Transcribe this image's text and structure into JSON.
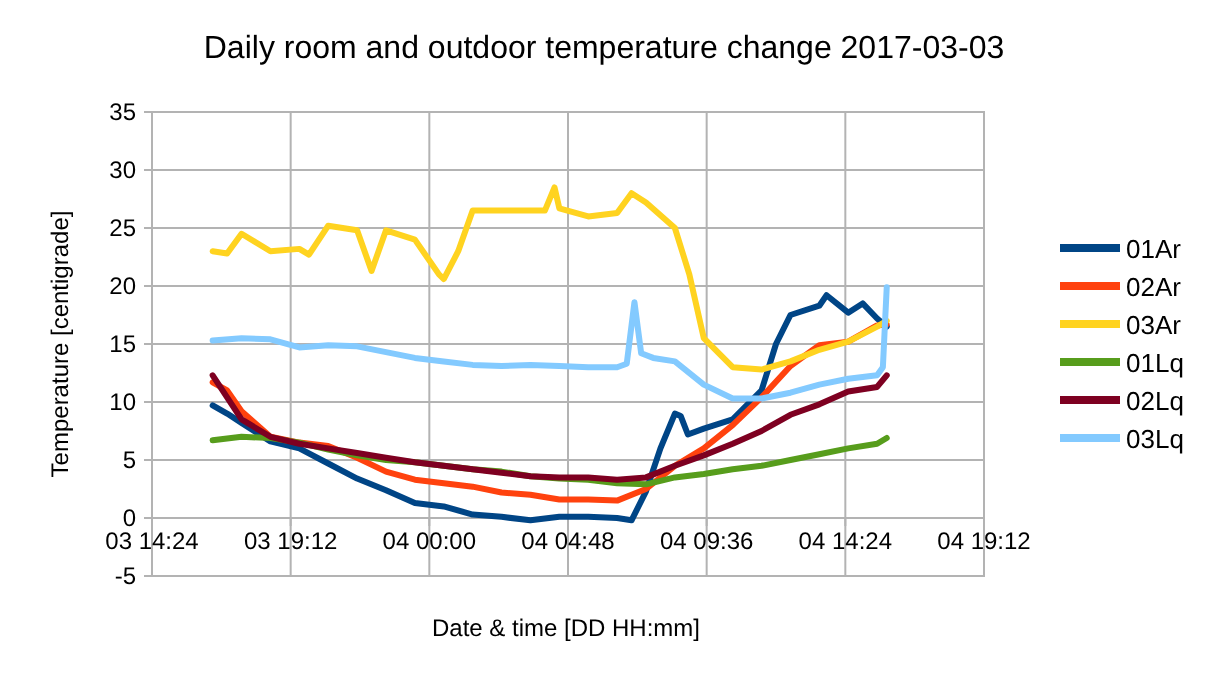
{
  "chart_data": {
    "type": "line",
    "title": "Daily room and outdoor temperature change 2017-03-03",
    "xlabel": "Date & time [DD HH:mm]",
    "ylabel": "Temperature [centigrade]",
    "xlim": [
      "2017-03-03T14:24",
      "2017-03-04T19:12"
    ],
    "xticks": [
      {
        "value": "2017-03-03T14:24",
        "label": "03 14:24"
      },
      {
        "value": "2017-03-03T19:12",
        "label": "03 19:12"
      },
      {
        "value": "2017-03-04T00:00",
        "label": "04 00:00"
      },
      {
        "value": "2017-03-04T04:48",
        "label": "04 04:48"
      },
      {
        "value": "2017-03-04T09:36",
        "label": "04 09:36"
      },
      {
        "value": "2017-03-04T14:24",
        "label": "04 14:24"
      },
      {
        "value": "2017-03-04T19:12",
        "label": "04 19:12"
      }
    ],
    "ylim": [
      -5,
      35
    ],
    "yticks": [
      -5,
      0,
      5,
      10,
      15,
      20,
      25,
      30,
      35
    ],
    "grid": true,
    "legend": "right",
    "marker": "none",
    "line_style": "solid",
    "series": [
      {
        "name": "01Ar",
        "color": "#004586",
        "x": [
          "2017-03-03T16:30",
          "2017-03-03T17:00",
          "2017-03-03T17:30",
          "2017-03-03T18:30",
          "2017-03-03T19:30",
          "2017-03-03T20:30",
          "2017-03-03T21:30",
          "2017-03-03T22:30",
          "2017-03-03T23:30",
          "2017-03-04T00:30",
          "2017-03-04T01:30",
          "2017-03-04T02:30",
          "2017-03-04T03:30",
          "2017-03-04T04:30",
          "2017-03-04T05:30",
          "2017-03-04T06:30",
          "2017-03-04T07:00",
          "2017-03-04T07:30",
          "2017-03-04T08:00",
          "2017-03-04T08:30",
          "2017-03-04T08:42",
          "2017-03-04T08:57",
          "2017-03-04T09:30",
          "2017-03-04T10:30",
          "2017-03-04T11:30",
          "2017-03-04T12:00",
          "2017-03-04T12:30",
          "2017-03-04T13:30",
          "2017-03-04T13:45",
          "2017-03-04T14:30",
          "2017-03-04T15:00",
          "2017-03-04T15:30",
          "2017-03-04T15:50"
        ],
        "values": [
          9.7,
          9,
          8.2,
          6.6,
          6,
          4.7,
          3.4,
          2.4,
          1.3,
          1,
          0.3,
          0.1,
          -0.2,
          0.1,
          0.1,
          0,
          -0.2,
          2.3,
          6,
          9,
          8.8,
          7.2,
          7.7,
          8.5,
          11,
          15,
          17.5,
          18.3,
          19.2,
          17.7,
          18.5,
          17.2,
          16.5
        ]
      },
      {
        "name": "02Ar",
        "color": "#ff420e",
        "x": [
          "2017-03-03T16:30",
          "2017-03-03T17:00",
          "2017-03-03T17:30",
          "2017-03-03T18:30",
          "2017-03-03T19:30",
          "2017-03-03T20:30",
          "2017-03-03T21:30",
          "2017-03-03T22:30",
          "2017-03-03T23:30",
          "2017-03-04T00:30",
          "2017-03-04T01:30",
          "2017-03-04T02:30",
          "2017-03-04T03:30",
          "2017-03-04T04:30",
          "2017-03-04T05:30",
          "2017-03-04T06:30",
          "2017-03-04T07:30",
          "2017-03-04T08:30",
          "2017-03-04T09:30",
          "2017-03-04T10:30",
          "2017-03-04T11:30",
          "2017-03-04T12:30",
          "2017-03-04T13:30",
          "2017-03-04T14:30",
          "2017-03-04T15:30",
          "2017-03-04T15:50"
        ],
        "values": [
          11.7,
          11,
          9.2,
          7,
          6.5,
          6.2,
          5.2,
          4,
          3.3,
          3,
          2.7,
          2.2,
          2,
          1.6,
          1.6,
          1.5,
          2.5,
          4.5,
          6,
          8,
          10.4,
          13.1,
          14.9,
          15.2,
          16.6,
          16.7
        ]
      },
      {
        "name": "03Ar",
        "color": "#ffd320",
        "x": [
          "2017-03-03T16:30",
          "2017-03-03T17:00",
          "2017-03-03T17:30",
          "2017-03-03T18:30",
          "2017-03-03T19:30",
          "2017-03-03T19:50",
          "2017-03-03T20:30",
          "2017-03-03T21:30",
          "2017-03-03T22:00",
          "2017-03-03T22:30",
          "2017-03-03T23:30",
          "2017-03-04T00:20",
          "2017-03-04T00:30",
          "2017-03-04T01:00",
          "2017-03-04T01:30",
          "2017-03-04T02:30",
          "2017-03-04T03:30",
          "2017-03-04T04:00",
          "2017-03-04T04:20",
          "2017-03-04T04:30",
          "2017-03-04T05:30",
          "2017-03-04T06:30",
          "2017-03-04T07:00",
          "2017-03-04T07:30",
          "2017-03-04T08:30",
          "2017-03-04T09:00",
          "2017-03-04T09:30",
          "2017-03-04T10:30",
          "2017-03-04T11:30",
          "2017-03-04T12:30",
          "2017-03-04T13:30",
          "2017-03-04T14:30",
          "2017-03-04T15:30",
          "2017-03-04T15:50"
        ],
        "values": [
          23,
          22.8,
          24.5,
          23,
          23.2,
          22.7,
          25.2,
          24.8,
          21.3,
          24.8,
          24,
          21,
          20.6,
          23,
          26.5,
          26.5,
          26.5,
          26.5,
          28.5,
          26.7,
          26,
          26.3,
          28,
          27.2,
          25,
          21,
          15.5,
          13,
          12.8,
          13.5,
          14.5,
          15.2,
          16.5,
          17
        ]
      },
      {
        "name": "01Lq",
        "color": "#579d1c",
        "x": [
          "2017-03-03T16:30",
          "2017-03-03T17:30",
          "2017-03-03T18:30",
          "2017-03-03T19:30",
          "2017-03-03T20:30",
          "2017-03-03T21:30",
          "2017-03-03T22:30",
          "2017-03-03T23:30",
          "2017-03-04T00:30",
          "2017-03-04T01:30",
          "2017-03-04T02:30",
          "2017-03-04T03:30",
          "2017-03-04T04:30",
          "2017-03-04T05:30",
          "2017-03-04T06:30",
          "2017-03-04T07:30",
          "2017-03-04T08:30",
          "2017-03-04T09:30",
          "2017-03-04T10:30",
          "2017-03-04T11:30",
          "2017-03-04T12:30",
          "2017-03-04T13:30",
          "2017-03-04T14:30",
          "2017-03-04T15:30",
          "2017-03-04T15:50"
        ],
        "values": [
          6.7,
          7,
          6.9,
          6.5,
          5.9,
          5.4,
          5,
          4.8,
          4.5,
          4.2,
          4,
          3.6,
          3.4,
          3.3,
          3,
          2.9,
          3.5,
          3.8,
          4.2,
          4.5,
          5,
          5.5,
          6,
          6.4,
          6.9
        ]
      },
      {
        "name": "02Lq",
        "color": "#7e0021",
        "x": [
          "2017-03-03T16:30",
          "2017-03-03T17:30",
          "2017-03-03T18:30",
          "2017-03-03T19:30",
          "2017-03-03T20:30",
          "2017-03-03T21:30",
          "2017-03-03T22:30",
          "2017-03-03T23:30",
          "2017-03-04T00:30",
          "2017-03-04T01:30",
          "2017-03-04T02:30",
          "2017-03-04T03:30",
          "2017-03-04T04:30",
          "2017-03-04T05:30",
          "2017-03-04T06:30",
          "2017-03-04T07:30",
          "2017-03-04T08:30",
          "2017-03-04T09:30",
          "2017-03-04T10:30",
          "2017-03-04T11:30",
          "2017-03-04T12:30",
          "2017-03-04T13:30",
          "2017-03-04T14:30",
          "2017-03-04T15:30",
          "2017-03-04T15:50"
        ],
        "values": [
          12.3,
          8.5,
          7,
          6.4,
          6,
          5.6,
          5.2,
          4.8,
          4.5,
          4.2,
          3.9,
          3.6,
          3.5,
          3.5,
          3.3,
          3.5,
          4.5,
          5.4,
          6.4,
          7.5,
          8.9,
          9.8,
          10.9,
          11.3,
          12.3
        ]
      },
      {
        "name": "03Lq",
        "color": "#83caff",
        "x": [
          "2017-03-03T16:30",
          "2017-03-03T17:30",
          "2017-03-03T18:30",
          "2017-03-03T19:30",
          "2017-03-03T20:30",
          "2017-03-03T21:30",
          "2017-03-03T22:30",
          "2017-03-03T23:30",
          "2017-03-04T00:30",
          "2017-03-04T01:30",
          "2017-03-04T02:30",
          "2017-03-04T03:30",
          "2017-03-04T04:30",
          "2017-03-04T05:30",
          "2017-03-04T06:30",
          "2017-03-04T06:50",
          "2017-03-04T07:06",
          "2017-03-04T07:20",
          "2017-03-04T07:45",
          "2017-03-04T08:30",
          "2017-03-04T09:30",
          "2017-03-04T10:30",
          "2017-03-04T11:30",
          "2017-03-04T12:30",
          "2017-03-04T13:30",
          "2017-03-04T14:30",
          "2017-03-04T15:30",
          "2017-03-04T15:42",
          "2017-03-04T15:50"
        ],
        "values": [
          15.3,
          15.5,
          15.4,
          14.7,
          14.9,
          14.8,
          14.3,
          13.8,
          13.5,
          13.2,
          13.1,
          13.2,
          13.1,
          13,
          13,
          13.3,
          18.6,
          14.2,
          13.8,
          13.5,
          11.5,
          10.3,
          10.3,
          10.8,
          11.5,
          12,
          12.3,
          13,
          19.9
        ]
      }
    ]
  }
}
